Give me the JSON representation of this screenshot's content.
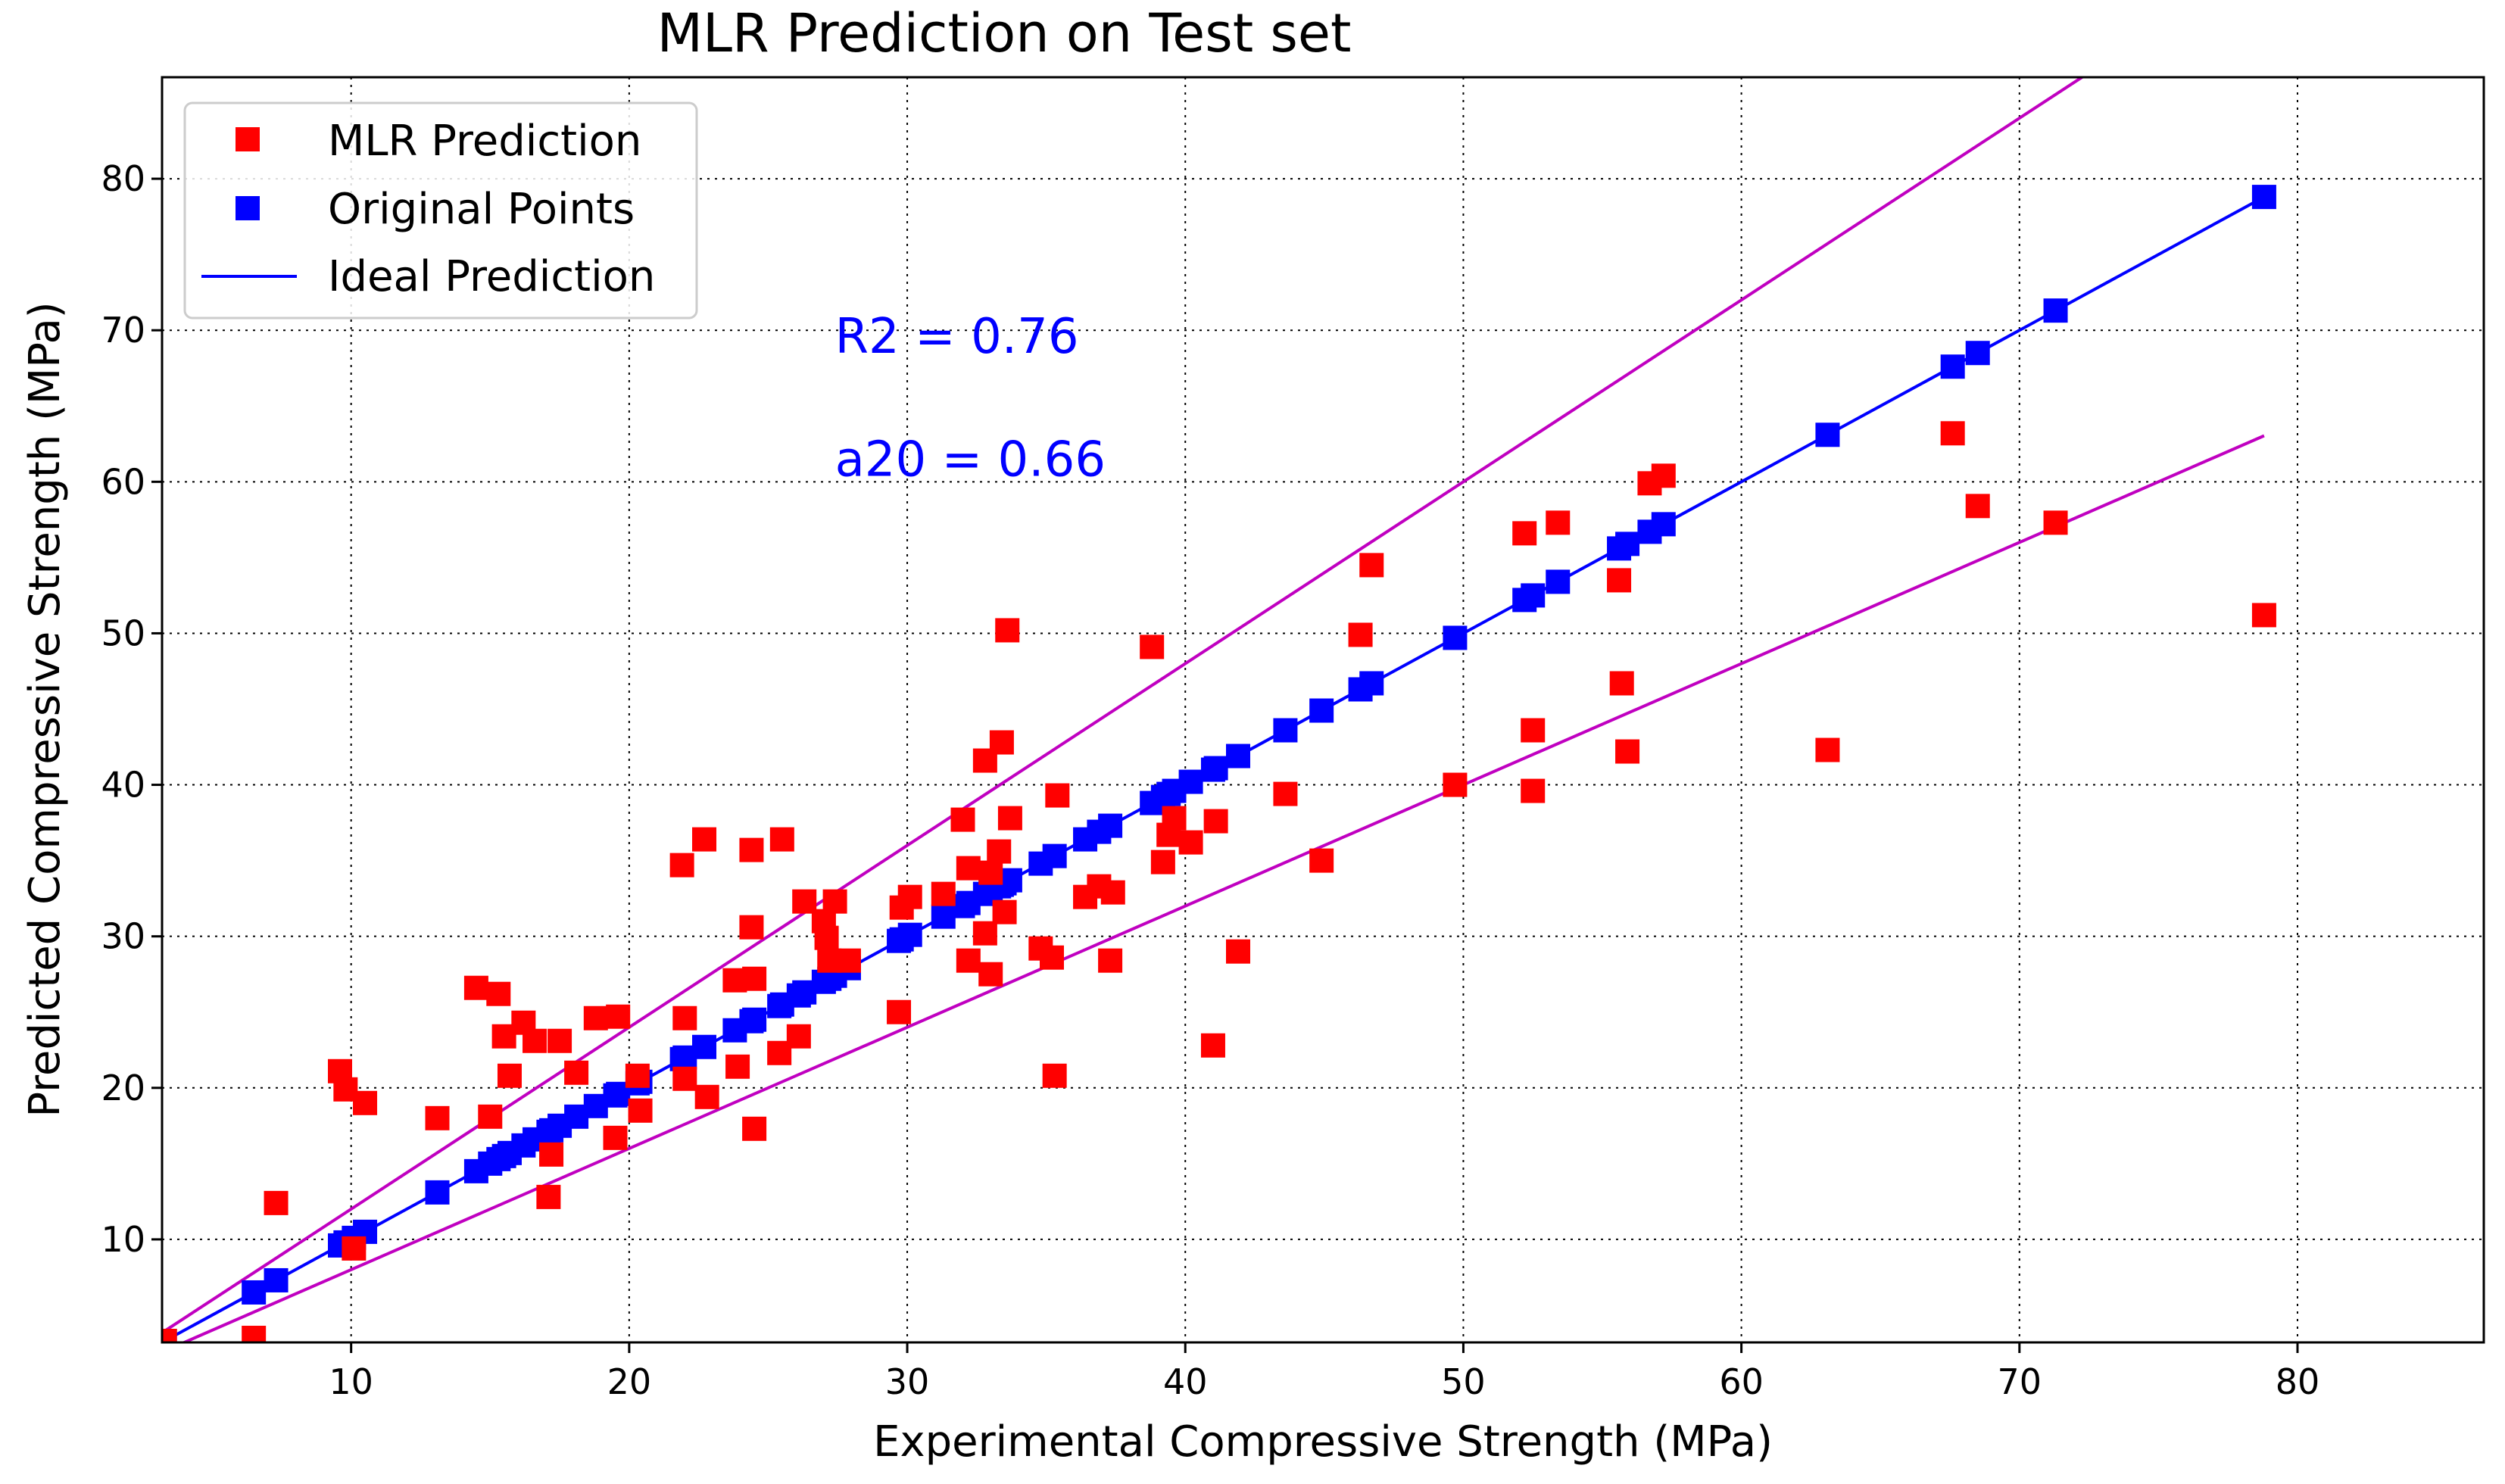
{
  "chart_data": {
    "type": "scatter",
    "title": "MLR Prediction on Test set",
    "xlabel": "Experimental Compressive Strength (MPa)",
    "ylabel": "Predicted Compressive Strength (MPa)",
    "xlim": [
      3.2,
      86.7
    ],
    "ylim": [
      3.2,
      86.7
    ],
    "xticks": [
      10,
      20,
      30,
      40,
      50,
      60,
      70,
      80
    ],
    "yticks": [
      10,
      20,
      30,
      40,
      50,
      60,
      70,
      80
    ],
    "grid": true,
    "grid_style": "dotted",
    "legend_position": "top-left",
    "legend": [
      {
        "label": "MLR Prediction",
        "color": "#ff0000",
        "marker": "square"
      },
      {
        "label": "Original Points",
        "color": "#0000ff",
        "marker": "square"
      },
      {
        "label": "Ideal Prediction",
        "color": "#0000ff",
        "marker": "line"
      }
    ],
    "annotations": [
      {
        "text": "R2 = 0.76",
        "x": 27.4,
        "y": 68.5,
        "color": "#0000ff"
      },
      {
        "text": "a20 = 0.66",
        "x": 27.4,
        "y": 60.4,
        "color": "#0000ff"
      }
    ],
    "bound_lines": {
      "color": "#c000c0",
      "upper": {
        "slope": 1.2,
        "x": [
          3.2,
          72.3
        ]
      },
      "lower": {
        "slope": 0.8,
        "x": [
          3.5,
          78.8
        ]
      }
    },
    "series": [
      {
        "name": "MLR Prediction",
        "color": "#ff0000",
        "x": [
          3.3,
          6.5,
          7.3,
          9.6,
          9.8,
          10.1,
          10.5,
          13.1,
          14.5,
          15.0,
          15.3,
          15.5,
          15.7,
          16.2,
          16.6,
          17.1,
          17.2,
          17.5,
          18.1,
          18.8,
          19.5,
          19.6,
          20.3,
          20.4,
          21.9,
          22.0,
          22.0,
          22.7,
          22.8,
          23.8,
          23.9,
          24.4,
          24.4,
          24.5,
          24.5,
          25.4,
          25.5,
          26.1,
          26.3,
          27.0,
          27.1,
          27.2,
          27.4,
          27.9,
          29.7,
          29.8,
          30.1,
          31.3,
          32.0,
          32.2,
          32.2,
          32.8,
          32.8,
          33.0,
          33.0,
          33.3,
          33.4,
          33.5,
          33.6,
          33.7,
          34.8,
          35.2,
          35.3,
          35.4,
          36.4,
          36.9,
          37.3,
          37.4,
          38.8,
          39.2,
          39.4,
          39.6,
          40.2,
          41.0,
          41.1,
          41.9,
          43.6,
          44.9,
          46.3,
          46.7,
          49.7,
          52.2,
          52.5,
          52.5,
          53.4,
          55.6,
          55.7,
          55.9,
          56.7,
          57.2,
          63.1,
          67.6,
          68.5,
          71.3,
          78.8
        ],
        "y": [
          3.3,
          3.5,
          12.4,
          21.1,
          19.9,
          9.4,
          19.0,
          18.0,
          26.6,
          18.1,
          26.2,
          23.4,
          20.8,
          24.3,
          23.1,
          12.8,
          15.6,
          23.1,
          21.0,
          24.6,
          16.7,
          24.7,
          20.8,
          18.5,
          34.7,
          24.6,
          20.6,
          36.4,
          19.4,
          27.1,
          21.4,
          35.7,
          30.6,
          17.3,
          27.2,
          22.3,
          36.4,
          23.4,
          32.3,
          31.0,
          29.9,
          28.4,
          32.3,
          28.4,
          25.0,
          31.9,
          32.6,
          32.8,
          37.7,
          28.4,
          34.5,
          41.6,
          30.2,
          27.5,
          34.2,
          35.6,
          42.8,
          31.6,
          50.2,
          37.8,
          29.2,
          28.6,
          20.8,
          39.3,
          32.6,
          33.3,
          28.4,
          32.9,
          49.1,
          34.9,
          36.7,
          37.8,
          36.2,
          22.8,
          37.6,
          29.0,
          39.4,
          35.0,
          49.9,
          54.5,
          40.0,
          56.6,
          43.6,
          39.6,
          57.3,
          53.5,
          46.7,
          42.2,
          59.9,
          60.4,
          42.3,
          63.2,
          58.4,
          57.3,
          51.2
        ]
      },
      {
        "name": "Original Points",
        "color": "#0000ff",
        "x": [
          3.3,
          6.5,
          7.3,
          9.6,
          9.8,
          10.1,
          10.5,
          13.1,
          14.5,
          15.0,
          15.3,
          15.5,
          15.7,
          16.2,
          16.6,
          17.1,
          17.2,
          17.5,
          18.1,
          18.8,
          19.5,
          19.6,
          20.3,
          20.4,
          21.9,
          22.0,
          22.7,
          23.8,
          24.4,
          24.5,
          25.4,
          25.5,
          26.1,
          26.3,
          27.0,
          27.2,
          27.4,
          27.9,
          29.7,
          29.8,
          30.1,
          31.3,
          32.0,
          32.2,
          32.8,
          33.0,
          33.3,
          33.4,
          33.5,
          33.7,
          34.8,
          35.3,
          36.4,
          36.9,
          37.3,
          38.8,
          39.2,
          39.4,
          39.6,
          40.2,
          41.0,
          41.1,
          41.9,
          43.6,
          44.9,
          46.3,
          46.7,
          49.7,
          52.2,
          52.5,
          53.4,
          55.6,
          55.9,
          56.7,
          57.2,
          63.1,
          67.6,
          68.5,
          71.3,
          78.8
        ],
        "y": [
          3.3,
          6.5,
          7.3,
          9.6,
          9.8,
          10.1,
          10.5,
          13.1,
          14.5,
          15.0,
          15.3,
          15.5,
          15.7,
          16.2,
          16.6,
          17.1,
          17.2,
          17.5,
          18.1,
          18.8,
          19.5,
          19.6,
          20.3,
          20.4,
          21.9,
          22.0,
          22.7,
          23.8,
          24.4,
          24.5,
          25.4,
          25.5,
          26.1,
          26.3,
          27.0,
          27.2,
          27.4,
          27.9,
          29.7,
          29.8,
          30.1,
          31.3,
          32.0,
          32.2,
          32.8,
          33.0,
          33.3,
          33.4,
          33.5,
          33.7,
          34.8,
          35.3,
          36.4,
          36.9,
          37.3,
          38.8,
          39.2,
          39.4,
          39.6,
          40.2,
          41.0,
          41.1,
          41.9,
          43.6,
          44.9,
          46.3,
          46.7,
          49.7,
          52.2,
          52.5,
          53.4,
          55.6,
          55.9,
          56.7,
          57.2,
          63.1,
          67.6,
          68.5,
          71.3,
          78.8
        ]
      },
      {
        "name": "Ideal Prediction",
        "color": "#0000ff",
        "type": "line",
        "x": [
          3.3,
          78.8
        ],
        "y": [
          3.3,
          78.8
        ]
      }
    ]
  }
}
